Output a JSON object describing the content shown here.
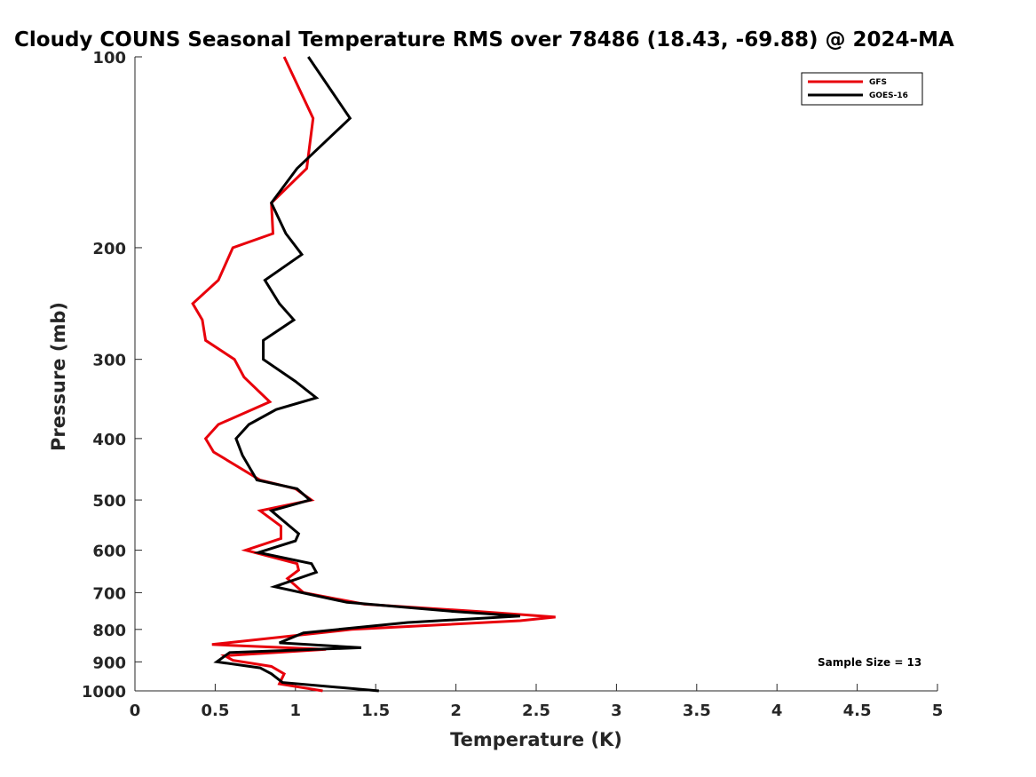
{
  "chart_data": {
    "type": "line",
    "title": "Cloudy COUNS Seasonal Temperature RMS over 78486 (18.43, -69.88) @ 2024-MA",
    "xlabel": "Temperature (K)",
    "ylabel": "Pressure (mb)",
    "xlim": [
      0,
      5
    ],
    "ylim": [
      100,
      1000
    ],
    "yscale": "log",
    "y_reversed": true,
    "xticks": [
      "0",
      "0.5",
      "1",
      "1.5",
      "2",
      "2.5",
      "3",
      "3.5",
      "4",
      "4.5",
      "5"
    ],
    "yticks": [
      "100",
      "200",
      "300",
      "400",
      "500",
      "600",
      "700",
      "800",
      "900",
      "1000"
    ],
    "legend_location": "top-right",
    "annotation": "Sample Size = 13",
    "series": [
      {
        "name": "GFS",
        "color": "#e8000b",
        "points": [
          [
            0.93,
            100
          ],
          [
            1.11,
            125
          ],
          [
            1.07,
            150
          ],
          [
            0.85,
            170
          ],
          [
            0.86,
            190
          ],
          [
            0.61,
            200
          ],
          [
            0.52,
            225
          ],
          [
            0.36,
            245
          ],
          [
            0.42,
            260
          ],
          [
            0.44,
            280
          ],
          [
            0.62,
            300
          ],
          [
            0.68,
            320
          ],
          [
            0.84,
            350
          ],
          [
            0.52,
            380
          ],
          [
            0.44,
            400
          ],
          [
            0.49,
            420
          ],
          [
            0.78,
            465
          ],
          [
            1.0,
            480
          ],
          [
            1.1,
            500
          ],
          [
            0.78,
            520
          ],
          [
            0.91,
            550
          ],
          [
            0.91,
            575
          ],
          [
            0.69,
            600
          ],
          [
            1.01,
            630
          ],
          [
            1.02,
            645
          ],
          [
            0.95,
            665
          ],
          [
            1.05,
            700
          ],
          [
            1.43,
            730
          ],
          [
            2.15,
            750
          ],
          [
            2.62,
            765
          ],
          [
            2.4,
            775
          ],
          [
            1.35,
            800
          ],
          [
            0.48,
            845
          ],
          [
            1.19,
            860
          ],
          [
            0.56,
            880
          ],
          [
            0.61,
            895
          ],
          [
            0.85,
            915
          ],
          [
            0.93,
            940
          ],
          [
            0.9,
            975
          ],
          [
            1.17,
            1000
          ]
        ]
      },
      {
        "name": "GOES-16",
        "color": "#000000",
        "points": [
          [
            1.08,
            100
          ],
          [
            1.34,
            125
          ],
          [
            1.01,
            150
          ],
          [
            0.85,
            170
          ],
          [
            0.94,
            190
          ],
          [
            1.04,
            205
          ],
          [
            0.81,
            225
          ],
          [
            0.9,
            245
          ],
          [
            0.99,
            260
          ],
          [
            0.8,
            280
          ],
          [
            0.8,
            300
          ],
          [
            1.0,
            325
          ],
          [
            1.13,
            345
          ],
          [
            0.88,
            360
          ],
          [
            0.71,
            380
          ],
          [
            0.63,
            400
          ],
          [
            0.67,
            425
          ],
          [
            0.76,
            465
          ],
          [
            1.01,
            480
          ],
          [
            1.09,
            500
          ],
          [
            0.85,
            520
          ],
          [
            1.02,
            565
          ],
          [
            1.0,
            580
          ],
          [
            0.77,
            605
          ],
          [
            1.1,
            630
          ],
          [
            1.13,
            650
          ],
          [
            0.87,
            685
          ],
          [
            1.04,
            700
          ],
          [
            1.32,
            725
          ],
          [
            2.0,
            750
          ],
          [
            2.4,
            762
          ],
          [
            1.7,
            780
          ],
          [
            1.05,
            810
          ],
          [
            0.9,
            840
          ],
          [
            1.41,
            855
          ],
          [
            0.59,
            870
          ],
          [
            0.51,
            900
          ],
          [
            0.78,
            920
          ],
          [
            0.85,
            940
          ],
          [
            0.92,
            970
          ],
          [
            1.52,
            1000
          ]
        ]
      }
    ]
  }
}
